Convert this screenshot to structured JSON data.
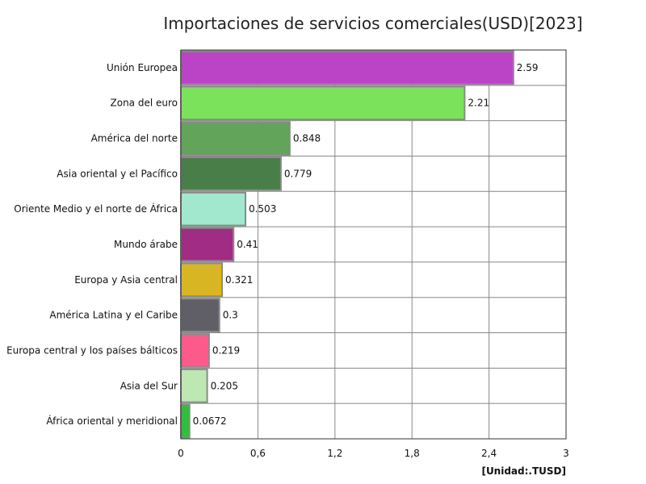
{
  "chart_data": {
    "type": "bar",
    "orientation": "horizontal",
    "title": "Importaciones de servicios comerciales(USD)[2023]",
    "unit_label": "[Unidad:.TUSD]",
    "categories": [
      "Unión Europea",
      "Zona del euro",
      "América del norte",
      "Asia oriental y el Pacífico",
      "Oriente Medio y el norte de África",
      "Mundo árabe",
      "Europa y Asia central",
      "América Latina y el Caribe",
      "Europa central y los países bálticos",
      "Asia del Sur",
      "África oriental y meridional"
    ],
    "values": [
      2.59,
      2.21,
      0.848,
      0.779,
      0.503,
      0.41,
      0.321,
      0.3,
      0.219,
      0.205,
      0.0672
    ],
    "value_labels": [
      "2.59",
      "2.21",
      "0.848",
      "0.779",
      "0.503",
      "0.41",
      "0.321",
      "0.3",
      "0.219",
      "0.205",
      "0.0672"
    ],
    "colors": [
      "#bb44c6",
      "#7be25c",
      "#62a55a",
      "#4a7e48",
      "#a2e8cf",
      "#a02c83",
      "#d8b623",
      "#605e66",
      "#fd5a8c",
      "#bde8b2",
      "#2fbf3c"
    ],
    "xlim": [
      0,
      3
    ],
    "xticks": [
      0,
      0.6,
      1.2,
      1.8,
      2.4,
      3
    ],
    "xtick_labels": [
      "0",
      "0,6",
      "1,2",
      "1,8",
      "2,4",
      "3"
    ],
    "grid": true
  }
}
